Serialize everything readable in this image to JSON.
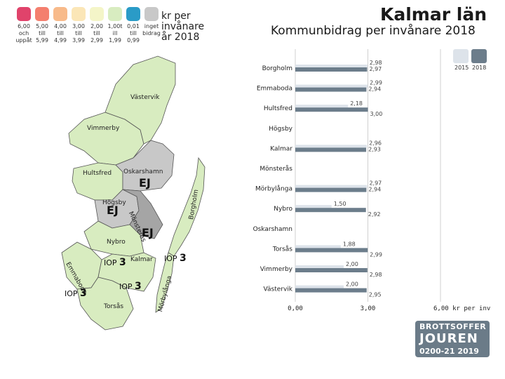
{
  "header": {
    "title": "Kalmar län",
    "subtitle": "Kommunbidrag per invånare 2018"
  },
  "map_legend": {
    "unit_lines": [
      "kr per",
      "invånare",
      "år 2018"
    ],
    "classes": [
      {
        "color": "#e0436b",
        "lines": [
          "6,00",
          "och",
          "uppåt"
        ]
      },
      {
        "color": "#f47f6e",
        "lines": [
          "5,00",
          "till",
          "5,99"
        ]
      },
      {
        "color": "#f8ba8a",
        "lines": [
          "4,00",
          "till",
          "4,99"
        ]
      },
      {
        "color": "#fbe6b7",
        "lines": [
          "3,00",
          "till",
          "3,99"
        ]
      },
      {
        "color": "#f4f5c8",
        "lines": [
          "2,00",
          "till",
          "2,99"
        ]
      },
      {
        "color": "#d8ecc0",
        "lines": [
          "1,00t",
          "ill",
          "1,99"
        ]
      },
      {
        "color": "#2a9bc7",
        "lines": [
          "0,01",
          "till",
          "0,99"
        ]
      },
      {
        "color": "#c8c8c8",
        "lines": [
          "inget",
          "bidrag",
          ""
        ]
      }
    ]
  },
  "map": {
    "labels": {
      "borgholm": "Borgholm",
      "emmaboda": "Emmaboda",
      "vastervik": "Västervik",
      "hultsfred": "Hultsfred",
      "vimmerby": "Vimmerby",
      "oskarshamn": "Oskarshamn",
      "hogsby": "Högsby",
      "monsteras": "Mönsterås",
      "nybro": "Nybro",
      "kalmar": "Kalmar",
      "morbylanga": "Mörbylånga",
      "torsas": "Torsås"
    },
    "ej_label": "EJ",
    "iop_label": "IOP",
    "iop_number": "3"
  },
  "bar_legend": {
    "entries": [
      {
        "label": "2015",
        "color": "#dde3ea"
      },
      {
        "label": "2018",
        "color": "#6c7d8b"
      }
    ]
  },
  "chart_data": {
    "type": "bar",
    "orientation": "horizontal",
    "categories": [
      "Borgholm",
      "Emmaboda",
      "Hultsfred",
      "Högsby",
      "Kalmar",
      "Mönsterås",
      "Mörbylånga",
      "Nybro",
      "Oskarshamn",
      "Torsås",
      "Vimmerby",
      "Västervik"
    ],
    "series": [
      {
        "name": "2015",
        "color": "#dde3ea",
        "values": [
          2.98,
          2.99,
          2.18,
          null,
          2.96,
          null,
          2.97,
          1.5,
          null,
          1.88,
          2.0,
          2.0
        ]
      },
      {
        "name": "2018",
        "color": "#6c7d8b",
        "values": [
          2.97,
          2.94,
          3.0,
          null,
          2.93,
          null,
          2.94,
          2.92,
          null,
          2.99,
          2.98,
          2.95
        ]
      }
    ],
    "labels_2015": [
      "2,98",
      "2,99",
      "2,18",
      "",
      "2,96",
      "",
      "2,97",
      "1,50",
      "",
      "1,88",
      "2,00",
      "2,00"
    ],
    "labels_2018": [
      "2,97",
      "2,94",
      "3,00",
      "",
      "2,93",
      "",
      "2,94",
      "2,92",
      "",
      "2,99",
      "2,98",
      "2,95"
    ],
    "xlim": [
      0,
      6
    ],
    "xticks": [
      "0,00",
      "3,00",
      "6,00 kr per inv"
    ]
  },
  "logo": {
    "line1": "BROTTSOFFER",
    "line2": "JOUREN",
    "line3": "0200-21 2019"
  }
}
